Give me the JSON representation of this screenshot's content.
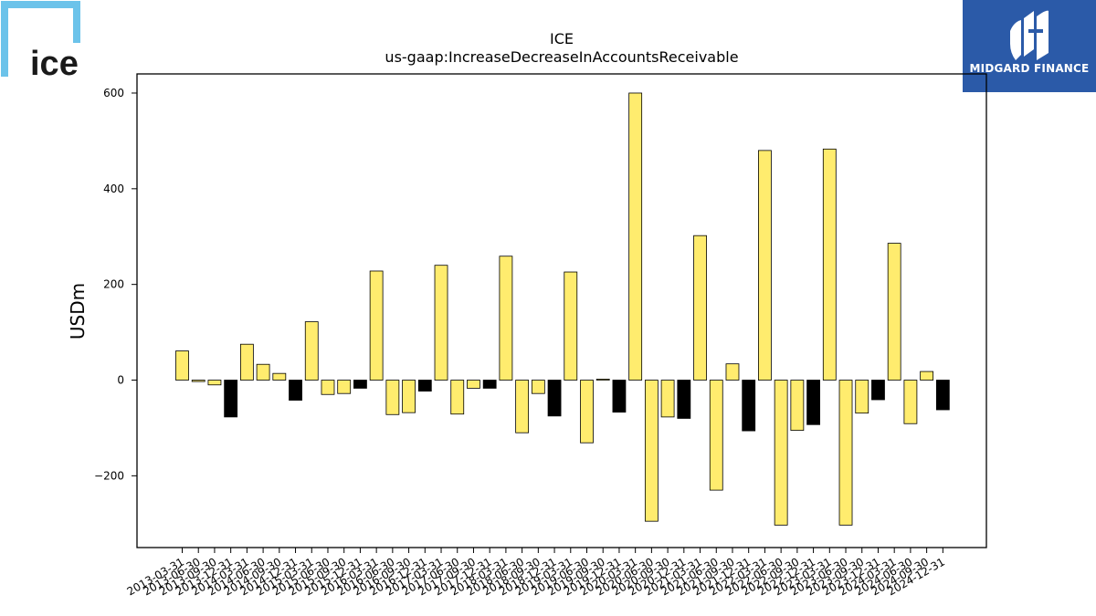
{
  "logos": {
    "left": {
      "text": "ice",
      "icon": "ice-logo-bracket",
      "color": "#6cc3ea"
    },
    "right": {
      "text": "MIDGARD FINANCE",
      "icon": "midgard-mark",
      "color": "#2b5aa8"
    }
  },
  "chart_data": {
    "type": "bar",
    "title": "ICE",
    "subtitle": "us-gaap:IncreaseDecreaseInAccountsReceivable",
    "xlabel": "",
    "ylabel": "USDm",
    "ylim": [
      -350,
      640
    ],
    "yticks": [
      -200,
      0,
      200,
      400,
      600
    ],
    "ytick_labels": [
      "−200",
      "0",
      "200",
      "400",
      "600"
    ],
    "grid": false,
    "legend": "none",
    "colors": {
      "annual": "#000000",
      "quarterly": "#ffec6e",
      "edge": "#000000"
    },
    "categories": [
      "2013-03-31",
      "2013-06-30",
      "2013-09-30",
      "2013-12-31",
      "2014-03-31",
      "2014-06-30",
      "2014-09-30",
      "2014-12-31",
      "2015-03-31",
      "2015-06-30",
      "2015-09-30",
      "2015-12-31",
      "2016-03-31",
      "2016-06-30",
      "2016-09-30",
      "2016-12-31",
      "2017-03-31",
      "2017-06-30",
      "2017-09-30",
      "2017-12-31",
      "2018-03-31",
      "2018-06-30",
      "2018-09-30",
      "2018-12-31",
      "2019-03-31",
      "2019-06-30",
      "2019-09-30",
      "2019-12-31",
      "2020-03-31",
      "2020-06-30",
      "2020-09-30",
      "2020-12-31",
      "2021-03-31",
      "2021-06-30",
      "2021-09-30",
      "2021-12-31",
      "2022-03-31",
      "2022-06-30",
      "2022-09-30",
      "2022-12-31",
      "2023-03-31",
      "2023-06-30",
      "2023-09-30",
      "2023-12-31",
      "2024-03-31",
      "2024-06-30",
      "2024-09-30",
      "2024-12-31"
    ],
    "values": [
      61,
      -3,
      -10,
      -77,
      75,
      33,
      14,
      -42,
      122,
      -30,
      -28,
      -17,
      228,
      -72,
      -68,
      -23,
      240,
      -71,
      -17,
      -17,
      259,
      -110,
      -28,
      -75,
      226,
      -131,
      2,
      -67,
      600,
      -295,
      -77,
      -80,
      302,
      -230,
      34,
      -106,
      480,
      -303,
      -105,
      -93,
      483,
      -303,
      -69,
      -41,
      286,
      -91,
      18,
      -62
    ]
  }
}
